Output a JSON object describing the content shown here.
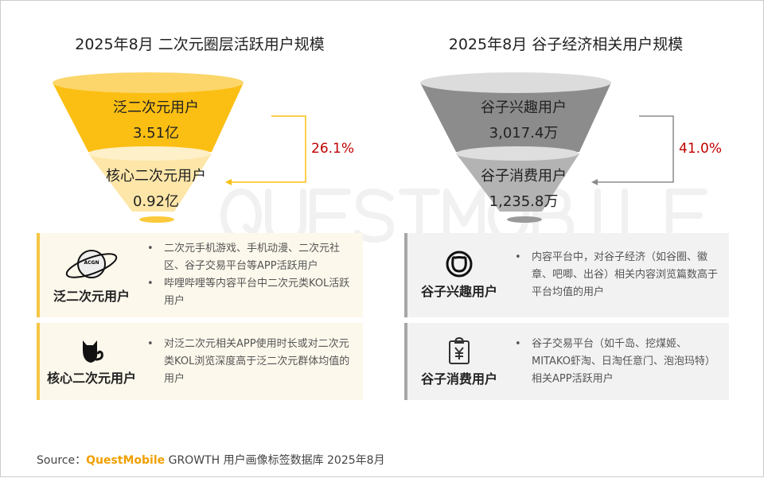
{
  "left": {
    "title": "2025年8月 二次元圈层活跃用户规模",
    "top_label": "泛二次元用户",
    "top_value": "3.51亿",
    "bottom_label": "核心二次元用户",
    "bottom_value": "0.92亿",
    "ratio": "26.1%",
    "cards": [
      {
        "label": "泛二次元用户",
        "icon": "planet-acgn-icon",
        "icon_text": "ACGN",
        "bullets": [
          "二次元手机游戏、手机动漫、二次元社区、谷子交易平台等APP活跃用户",
          "哔哩哔哩等内容平台中二次元类KOL活跃用户"
        ]
      },
      {
        "label": "核心二次元用户",
        "icon": "cat-icon",
        "bullets": [
          "对泛二次元相关APP使用时长或对二次元类KOL浏览深度高于泛二次元群体均值的用户"
        ]
      }
    ]
  },
  "right": {
    "title": "2025年8月 谷子经济相关用户规模",
    "top_label": "谷子兴趣用户",
    "top_value": "3,017.4万",
    "bottom_label": "谷子消费用户",
    "bottom_value": "1,235.8万",
    "ratio": "41.0%",
    "cards": [
      {
        "label": "谷子兴趣用户",
        "icon": "bear-face-icon",
        "bullets": [
          "内容平台中，对谷子经济（如谷圈、徽章、吧唧、出谷）相关内容浏览篇数高于平台均值的用户"
        ]
      },
      {
        "label": "谷子消费用户",
        "icon": "yen-clipboard-icon",
        "bullets": [
          "谷子交易平台（如千岛、挖煤姬、MITAKO虾淘、日淘任意门、泡泡玛特）相关APP活跃用户"
        ]
      }
    ]
  },
  "watermark": "QUESTMOBILE",
  "source": {
    "prefix": "Source：",
    "brand": "QuestMobile",
    "text": "GROWTH 用户画像标签数据库 2025年8月"
  },
  "colors": {
    "yellow": "#fbbf13",
    "gray": "#8c8c8c",
    "red": "#c00000"
  }
}
